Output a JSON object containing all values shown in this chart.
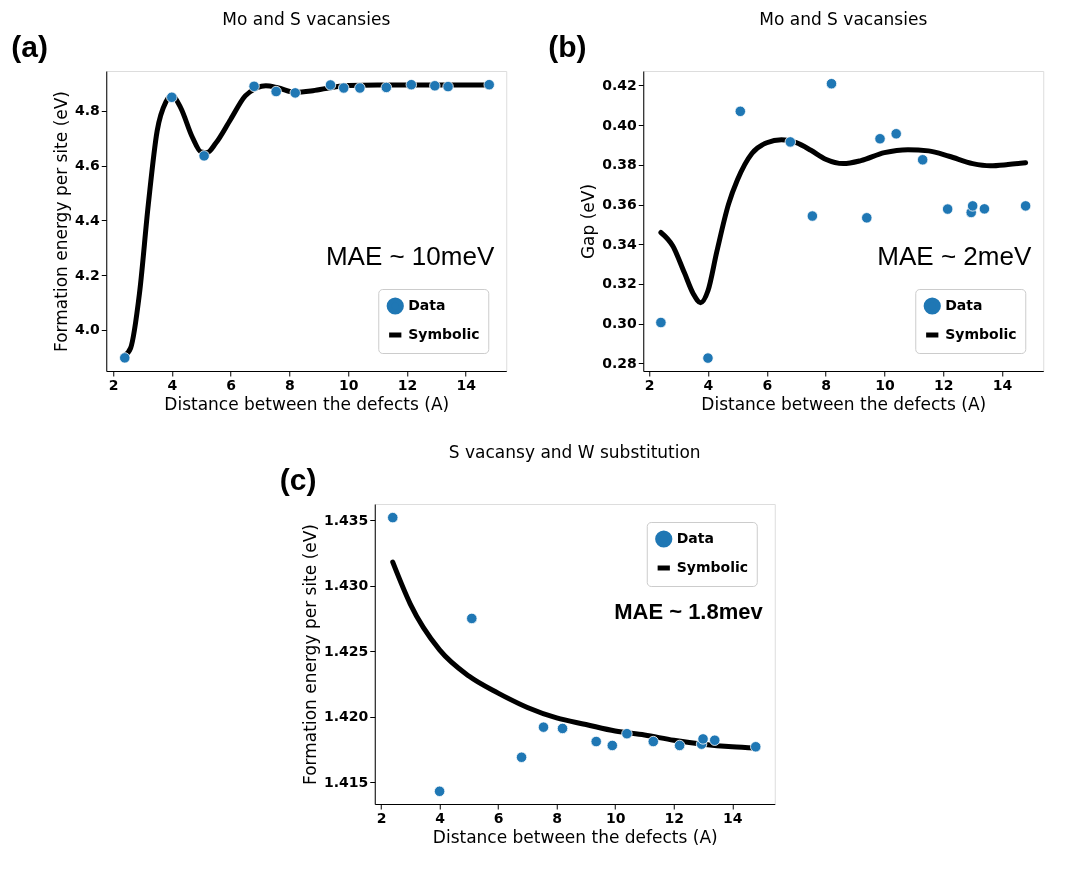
{
  "chart_data": [
    {
      "type": "scatter",
      "title": "Mo and S vacansies",
      "xlabel": "Distance between the defects (A)",
      "ylabel": "Formation energy per site (eV)",
      "annotations": [
        "(a)",
        "MAE ~ 10meV"
      ],
      "legend": "bottom right",
      "xlim": [
        1.77,
        15.38
      ],
      "ylim": [
        3.85,
        4.946
      ],
      "xticks": [
        2,
        4,
        6,
        8,
        10,
        12,
        14
      ],
      "yticks": [
        {
          "value": 4.0,
          "label": "4.0"
        },
        4.2,
        4.4,
        4.6,
        4.8
      ],
      "series": [
        {
          "name": "Data",
          "type": "scatter",
          "color": "#1f77b4",
          "x": [
            2.4,
            4.0,
            5.1,
            6.8,
            7.55,
            8.2,
            9.4,
            9.85,
            10.4,
            11.3,
            12.15,
            12.95,
            13.4,
            14.8
          ],
          "values": [
            3.898,
            4.85,
            4.636,
            4.89,
            4.871,
            4.866,
            4.895,
            4.884,
            4.884,
            4.886,
            4.896,
            4.892,
            4.889,
            4.896
          ]
        },
        {
          "name": "Symbolic",
          "type": "line",
          "color": "#000000",
          "x": [
            2.4,
            2.6,
            2.9,
            3.2,
            3.5,
            3.8,
            4.0,
            4.3,
            4.7,
            5.0,
            5.2,
            5.5,
            6.0,
            6.5,
            6.9,
            7.2,
            7.6,
            8.2,
            8.8,
            9.5,
            10.0,
            11.0,
            12.0,
            14.8
          ],
          "values": [
            3.907,
            3.934,
            4.133,
            4.457,
            4.726,
            4.833,
            4.857,
            4.812,
            4.704,
            4.65,
            4.648,
            4.683,
            4.769,
            4.855,
            4.885,
            4.892,
            4.885,
            4.868,
            4.874,
            4.887,
            4.893,
            4.895,
            4.895,
            4.895
          ]
        }
      ]
    },
    {
      "type": "scatter",
      "title": "Mo and S vacansies",
      "xlabel": "Distance between the defects (A)",
      "ylabel": "Gap (eV)",
      "annotations": [
        "(b)",
        "MAE ~  2meV"
      ],
      "legend": "bottom right",
      "xlim": [
        1.8,
        15.4
      ],
      "ylim": [
        0.2762,
        0.4272
      ],
      "xticks": [
        2,
        4,
        6,
        8,
        10,
        12,
        14
      ],
      "yticks": [
        0.28,
        {
          "value": 0.3,
          "label": "0.30"
        },
        0.32,
        0.34,
        0.36,
        0.38,
        {
          "value": 0.4,
          "label": "0.40"
        },
        0.42
      ],
      "series": [
        {
          "name": "Data",
          "type": "scatter",
          "color": "#1f77b4",
          "x": [
            2.4,
            4.0,
            5.1,
            6.8,
            7.55,
            8.2,
            9.4,
            9.85,
            10.4,
            11.3,
            12.15,
            12.95,
            13.0,
            13.4,
            14.8
          ],
          "values": [
            0.3006,
            0.2827,
            0.4069,
            0.3915,
            0.3542,
            0.4208,
            0.3533,
            0.3931,
            0.3956,
            0.3825,
            0.3577,
            0.356,
            0.3593,
            0.3578,
            0.3593
          ]
        },
        {
          "name": "Symbolic",
          "type": "line",
          "color": "#000000",
          "x": [
            2.4,
            2.8,
            3.2,
            3.5,
            3.75,
            4.0,
            4.3,
            4.7,
            5.0,
            5.5,
            6.0,
            6.5,
            7.0,
            7.5,
            8.0,
            8.6,
            9.2,
            10.0,
            10.8,
            11.5,
            12.2,
            13.0,
            13.6,
            14.2,
            14.8
          ],
          "values": [
            0.3459,
            0.3392,
            0.3256,
            0.3151,
            0.3106,
            0.3166,
            0.3362,
            0.3602,
            0.3723,
            0.3858,
            0.3911,
            0.3926,
            0.3911,
            0.3873,
            0.3828,
            0.3806,
            0.3821,
            0.3861,
            0.3876,
            0.387,
            0.3843,
            0.3806,
            0.3795,
            0.3801,
            0.381
          ]
        }
      ]
    },
    {
      "type": "scatter",
      "title": "S vacansy and W substitution",
      "xlabel": "Distance between the defects (A)",
      "ylabel": "Formation energy per site (eV)",
      "annotations": [
        "(c)",
        "MAE ~ 1.8mev"
      ],
      "legend": "top right",
      "xlim": [
        1.785,
        15.45
      ],
      "ylim": [
        1.41333,
        1.43624
      ],
      "xticks": [
        2,
        4,
        6,
        8,
        10,
        12,
        14
      ],
      "yticks": [
        1.415,
        {
          "value": 1.42,
          "label": "1.420"
        },
        1.425,
        {
          "value": 1.43,
          "label": "1.430"
        },
        1.435
      ],
      "series": [
        {
          "name": "Data",
          "type": "scatter",
          "color": "#1f77b4",
          "x": [
            2.4,
            4.0,
            5.1,
            6.8,
            7.55,
            8.2,
            9.35,
            9.9,
            10.4,
            11.3,
            12.2,
            12.95,
            13.0,
            13.4,
            14.8
          ],
          "values": [
            1.4352,
            1.4143,
            1.4275,
            1.4169,
            1.4192,
            1.4191,
            1.4181,
            1.4178,
            1.4187,
            1.4181,
            1.4178,
            1.4179,
            1.4183,
            1.4182,
            1.4177
          ]
        },
        {
          "name": "Symbolic",
          "type": "line",
          "color": "#000000",
          "x": [
            2.4,
            3.0,
            4.0,
            5.0,
            6.0,
            7.0,
            8.0,
            9.0,
            10.0,
            11.0,
            12.0,
            13.0,
            14.0,
            14.8
          ],
          "values": [
            1.4318,
            1.4286,
            1.4251,
            1.4231,
            1.4218,
            1.4207,
            1.4199,
            1.4194,
            1.4189,
            1.4186,
            1.4182,
            1.4179,
            1.4177,
            1.4176
          ]
        }
      ]
    }
  ]
}
